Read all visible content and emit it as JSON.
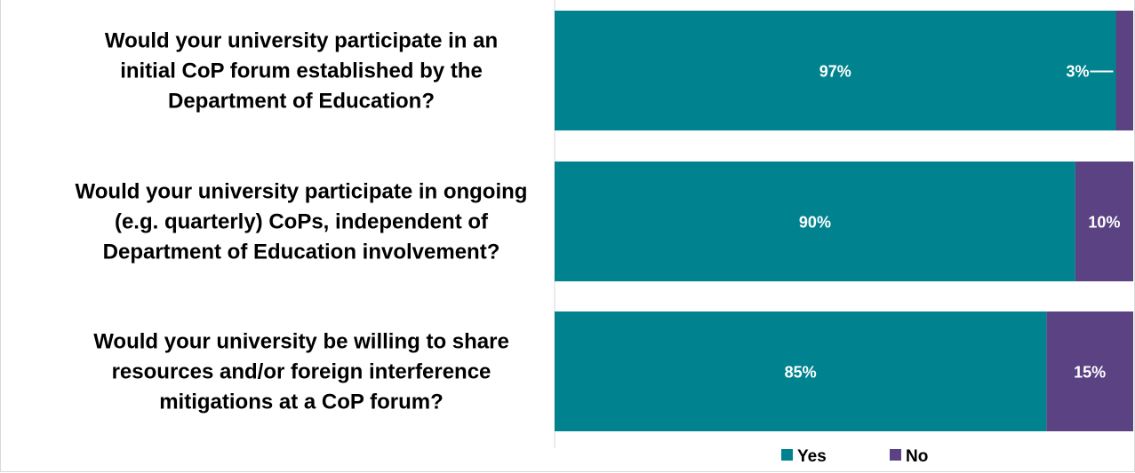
{
  "chart_data": {
    "type": "bar",
    "orientation": "horizontal",
    "stacked": true,
    "percent_stacked": true,
    "categories": [
      "Would your university participate in an initial CoP forum established by the Department of Education?",
      "Would your university participate in ongoing (e.g. quarterly) CoPs, independent of Department of Education involvement?",
      "Would your university be willing to share resources and/or foreign interference mitigations at a CoP forum?"
    ],
    "category_lines": [
      [
        "Would your university participate in an",
        "initial CoP forum established by the",
        "Department of Education?"
      ],
      [
        "Would your university participate in ongoing",
        "(e.g. quarterly) CoPs, independent of",
        "Department of Education involvement?"
      ],
      [
        "Would your university be willing to share",
        "resources and/or foreign interference",
        "mitigations at a CoP forum?"
      ]
    ],
    "series": [
      {
        "name": "Yes",
        "values": [
          97,
          90,
          85
        ],
        "labels": [
          "97%",
          "90%",
          "85%"
        ],
        "color": "#00838f"
      },
      {
        "name": "No",
        "values": [
          3,
          10,
          15
        ],
        "labels": [
          "3%",
          "10%",
          "15%"
        ],
        "color": "#5b4282"
      }
    ],
    "xlim": [
      0,
      100
    ],
    "grid": false,
    "legend": "bottom",
    "title": "",
    "xlabel": "",
    "ylabel": ""
  }
}
